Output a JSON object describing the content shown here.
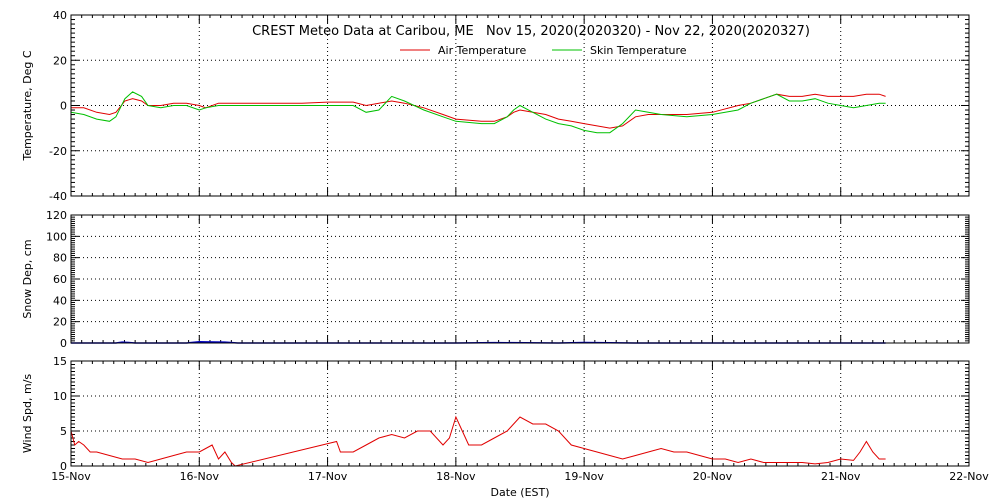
{
  "title": "CREST Meteo Data at Caribou, ME   Nov 15, 2020(2020320) - Nov 22, 2020(2020327)",
  "xlabel": "Date (EST)",
  "x_ticks": [
    "15-Nov",
    "16-Nov",
    "17-Nov",
    "18-Nov",
    "19-Nov",
    "20-Nov",
    "21-Nov",
    "22-Nov"
  ],
  "colors": {
    "air": "#e00000",
    "skin": "#00c000",
    "snow": "#0000c0",
    "wind": "#e00000"
  },
  "chart_data": [
    {
      "type": "line",
      "ylabel": "Temperature, Deg C",
      "ylim": [
        -40,
        40
      ],
      "yticks": [
        -40,
        -20,
        0,
        20,
        40
      ],
      "xlim": [
        0,
        7
      ],
      "grid": true,
      "legend_position": "top-center",
      "series": [
        {
          "name": "Air Temperature",
          "x": [
            0.0,
            0.1,
            0.2,
            0.3,
            0.35,
            0.42,
            0.48,
            0.55,
            0.6,
            0.7,
            0.8,
            0.9,
            1.0,
            1.05,
            1.15,
            1.3,
            1.5,
            1.8,
            2.0,
            2.2,
            2.3,
            2.4,
            2.5,
            2.6,
            2.75,
            2.9,
            3.0,
            3.2,
            3.3,
            3.4,
            3.45,
            3.5,
            3.6,
            3.7,
            3.8,
            3.9,
            4.0,
            4.1,
            4.2,
            4.3,
            4.4,
            4.5,
            4.6,
            4.8,
            5.0,
            5.2,
            5.3,
            5.4,
            5.5,
            5.6,
            5.7,
            5.8,
            5.9,
            6.0,
            6.1,
            6.2,
            6.3,
            6.35
          ],
          "y": [
            -1,
            -1,
            -3,
            -4,
            -3,
            2,
            3,
            2,
            0,
            0,
            1,
            1,
            0,
            -1,
            1,
            1,
            1,
            1,
            1.5,
            1.5,
            0,
            1,
            2,
            1,
            -1,
            -4,
            -6,
            -7,
            -7,
            -5,
            -3,
            -2,
            -3,
            -4,
            -6,
            -7,
            -8,
            -9,
            -10,
            -9,
            -5,
            -4,
            -4,
            -4,
            -3,
            0,
            1,
            3,
            5,
            4,
            4,
            5,
            4,
            4,
            4,
            5,
            5,
            4
          ]
        },
        {
          "name": "Skin Temperature",
          "x": [
            0.0,
            0.1,
            0.2,
            0.3,
            0.35,
            0.42,
            0.48,
            0.55,
            0.6,
            0.7,
            0.8,
            0.9,
            1.0,
            1.05,
            1.15,
            1.3,
            1.5,
            1.8,
            2.0,
            2.2,
            2.3,
            2.4,
            2.5,
            2.6,
            2.75,
            2.9,
            3.0,
            3.2,
            3.3,
            3.4,
            3.45,
            3.5,
            3.6,
            3.7,
            3.8,
            3.9,
            4.0,
            4.1,
            4.2,
            4.3,
            4.4,
            4.5,
            4.6,
            4.8,
            5.0,
            5.2,
            5.3,
            5.4,
            5.5,
            5.6,
            5.7,
            5.8,
            5.9,
            6.0,
            6.1,
            6.2,
            6.3,
            6.35
          ],
          "y": [
            -3,
            -4,
            -6,
            -7,
            -5,
            3,
            6,
            4,
            0,
            -1,
            0,
            0,
            -2,
            -1,
            0,
            0,
            0,
            0,
            0,
            0,
            -3,
            -2,
            4,
            2,
            -2,
            -5,
            -7,
            -8,
            -8,
            -5,
            -2,
            0,
            -3,
            -6,
            -8,
            -9,
            -11,
            -12,
            -12,
            -8,
            -2,
            -3,
            -4,
            -5,
            -4,
            -2,
            1,
            3,
            5,
            2,
            2,
            3,
            1,
            0,
            -1,
            0,
            1,
            1
          ]
        }
      ]
    },
    {
      "type": "line",
      "ylabel": "Snow Dep, cm",
      "ylim": [
        0,
        120
      ],
      "yticks": [
        0,
        20,
        40,
        60,
        80,
        100,
        120
      ],
      "xlim": [
        0,
        7
      ],
      "grid": true,
      "series": [
        {
          "name": "",
          "x": [
            0.0,
            0.35,
            0.4,
            0.5,
            0.9,
            1.0,
            1.05,
            1.2,
            1.3,
            1.6,
            3.0,
            3.3,
            3.8,
            4.0,
            4.2,
            4.4,
            5.0,
            6.0,
            6.35
          ],
          "y": [
            0,
            0,
            0.8,
            0,
            0,
            1.2,
            1,
            0.8,
            0,
            0,
            0,
            0.4,
            0,
            0.5,
            0.3,
            0,
            0,
            0,
            0
          ]
        }
      ]
    },
    {
      "type": "line",
      "ylabel": "Wind Spd, m/s",
      "ylim": [
        0,
        15
      ],
      "yticks": [
        0,
        5,
        10,
        15
      ],
      "xlim": [
        0,
        7
      ],
      "grid": true,
      "series": [
        {
          "name": "",
          "x": [
            0.0,
            0.03,
            0.06,
            0.1,
            0.15,
            0.2,
            0.3,
            0.4,
            0.5,
            0.6,
            0.7,
            0.8,
            0.9,
            1.0,
            1.05,
            1.1,
            1.15,
            1.2,
            1.25,
            1.28,
            2.07,
            2.1,
            2.2,
            2.3,
            2.4,
            2.5,
            2.6,
            2.7,
            2.8,
            2.9,
            2.95,
            3.0,
            3.05,
            3.1,
            3.2,
            3.3,
            3.4,
            3.45,
            3.5,
            3.6,
            3.7,
            3.8,
            3.9,
            4.0,
            4.1,
            4.2,
            4.3,
            4.4,
            4.5,
            4.6,
            4.7,
            4.8,
            4.9,
            5.0,
            5.1,
            5.2,
            5.3,
            5.4,
            5.5,
            5.6,
            5.7,
            5.8,
            5.9,
            6.0,
            6.1,
            6.15,
            6.2,
            6.25,
            6.3,
            6.35
          ],
          "y": [
            5,
            3,
            3.5,
            3,
            2,
            2,
            1.5,
            1,
            1,
            0.5,
            1,
            1.5,
            2,
            2,
            2.5,
            3,
            1,
            2,
            0.5,
            0,
            3.5,
            2,
            2,
            3,
            4,
            4.5,
            4,
            5,
            5,
            3,
            4,
            7,
            5,
            3,
            3,
            4,
            5,
            6,
            7,
            6,
            6,
            5,
            3,
            2.5,
            2,
            1.5,
            1,
            1.5,
            2,
            2.5,
            2,
            2,
            1.5,
            1,
            1,
            0.5,
            1,
            0.5,
            0.5,
            0.5,
            0.5,
            0.3,
            0.5,
            1,
            0.8,
            2,
            3.5,
            2,
            1,
            1
          ]
        }
      ]
    }
  ]
}
